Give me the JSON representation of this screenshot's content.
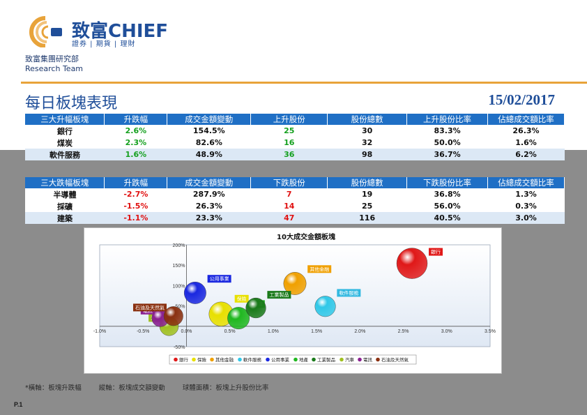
{
  "header": {
    "brand_cn": "致富CHIEF",
    "brand_sub": "證券 | 期貨 | 理財",
    "dept_cn": "致富集團研究部",
    "dept_en": "Research Team",
    "title": "每日板塊表現",
    "date": "15/02/2017"
  },
  "up_table": {
    "headers": [
      "三大升幅板塊",
      "升跌幅",
      "成交金額變動",
      "上升股份",
      "股份總數",
      "上升股份比率",
      "佔總成交額比率"
    ],
    "rows": [
      [
        "銀行",
        "2.6%",
        "154.5%",
        "25",
        "30",
        "83.3%",
        "26.3%"
      ],
      [
        "煤炭",
        "2.3%",
        "82.6%",
        "16",
        "32",
        "50.0%",
        "1.6%"
      ],
      [
        "軟件服務",
        "1.6%",
        "48.9%",
        "36",
        "98",
        "36.7%",
        "6.2%"
      ]
    ]
  },
  "down_table": {
    "headers": [
      "三大跌幅板塊",
      "升跌幅",
      "成交金額變動",
      "下跌股份",
      "股份總數",
      "下跌股份比率",
      "佔總成交額比率"
    ],
    "rows": [
      [
        "半導體",
        "-2.7%",
        "287.9%",
        "7",
        "19",
        "36.8%",
        "1.3%"
      ],
      [
        "採礦",
        "-1.5%",
        "26.3%",
        "14",
        "25",
        "56.0%",
        "0.3%"
      ],
      [
        "建築",
        "-1.1%",
        "23.3%",
        "47",
        "116",
        "40.5%",
        "3.0%"
      ]
    ]
  },
  "colors": {
    "header_blue": "#1f6fc5",
    "brand_blue": "#1f4e99",
    "accent_orange": "#e8a33a",
    "up_green": "#14a01e",
    "down_red": "#e01010"
  },
  "chart_data": {
    "type": "bubble",
    "title": "10大成交金額板塊",
    "xlabel": "",
    "ylabel": "",
    "xlim": [
      -1.0,
      3.5
    ],
    "ylim": [
      -50,
      200
    ],
    "x_ticks": [
      -1.0,
      -0.5,
      0.0,
      0.5,
      1.0,
      1.5,
      2.0,
      2.5,
      3.0,
      3.5
    ],
    "x_tick_labels": [
      "-1.0%",
      "-0.5%",
      "0.0%",
      "0.5%",
      "1.0%",
      "1.5%",
      "2.0%",
      "2.5%",
      "3.0%",
      "3.5%"
    ],
    "y_ticks": [
      -50,
      0,
      50,
      100,
      150,
      200
    ],
    "y_tick_labels": [
      "-50%",
      "0%",
      "50%",
      "100%",
      "150%",
      "200%"
    ],
    "legend_position": "bottom",
    "series": [
      {
        "name": "銀行",
        "x": 2.6,
        "y": 154.5,
        "share": 26.3,
        "color": "#e01818",
        "label_color": "#e01818"
      },
      {
        "name": "保險",
        "x": 0.4,
        "y": 30,
        "share": 12.0,
        "color": "#e8e000",
        "label_color": "#e8e000"
      },
      {
        "name": "其他金融",
        "x": 1.25,
        "y": 105,
        "share": 9.0,
        "color": "#f0a000",
        "label_color": "#f0a000"
      },
      {
        "name": "軟件服務",
        "x": 1.6,
        "y": 48.9,
        "share": 6.2,
        "color": "#30c8e8",
        "label_color": "#30b8e0"
      },
      {
        "name": "公用事業",
        "x": 0.1,
        "y": 82,
        "share": 8.0,
        "color": "#1a28e0",
        "label_color": "#1a28e0"
      },
      {
        "name": "地產",
        "x": 0.6,
        "y": 20,
        "share": 8.0,
        "color": "#20b820",
        "label_color": "#20b820"
      },
      {
        "name": "工業製品",
        "x": 0.8,
        "y": 45,
        "share": 5.5,
        "color": "#1a7a1a",
        "label_color": "#1a7a1a"
      },
      {
        "name": "汽車",
        "x": -0.2,
        "y": 0,
        "share": 4.0,
        "color": "#a0c020",
        "label_color": "#a0c020"
      },
      {
        "name": "電訊",
        "x": -0.3,
        "y": 20,
        "share": 2.5,
        "color": "#8a2090",
        "label_color": "#8a2090"
      },
      {
        "name": "石油及天然氣",
        "x": -0.15,
        "y": 25,
        "share": 4.5,
        "color": "#8a3010",
        "label_color": "#8a3010"
      }
    ]
  },
  "footnote": {
    "x_note": "*橫軸：板塊升跌幅",
    "y_note": "縱軸：板塊成交額變動",
    "size_note": "球體面積：板塊上升股份比率"
  },
  "page_number": "P.1"
}
